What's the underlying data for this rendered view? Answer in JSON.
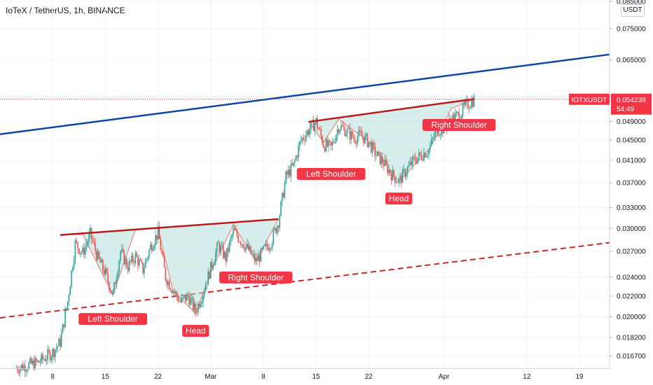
{
  "header": {
    "title": "IoTeX / TetherUS, 1h, BINANCE",
    "currency_button": "USDT"
  },
  "price_tag": {
    "symbol": "IOTXUSDT",
    "price": "0.054239",
    "countdown": "54:49",
    "color": "#f23645"
  },
  "colors": {
    "up": "#26a69a",
    "down": "#ef5350",
    "neckline": "#b71c1c",
    "upper_channel": "#0d47a1",
    "lower_channel": "#c62828",
    "pattern_fill": "#b2dfdb",
    "label_bg": "#f23645"
  },
  "chart_data": {
    "type": "line",
    "y_scale": "log",
    "ylim": [
      0.0158,
      0.0855
    ],
    "xlim": [
      "2021-02-01",
      "2021-04-23"
    ],
    "y_ticks": [
      "0.016700",
      "0.018200",
      "0.020000",
      "0.022000",
      "0.024000",
      "0.027000",
      "0.030000",
      "0.033000",
      "0.037000",
      "0.041000",
      "0.045000",
      "0.049000",
      "0.055000",
      "0.065000",
      "0.075000",
      "0.085000"
    ],
    "x_ticks": [
      {
        "label": "8",
        "date": "2021-02-08"
      },
      {
        "label": "15",
        "date": "2021-02-15"
      },
      {
        "label": "22",
        "date": "2021-02-22"
      },
      {
        "label": "Mar",
        "date": "2021-03-01"
      },
      {
        "label": "8",
        "date": "2021-03-08"
      },
      {
        "label": "15",
        "date": "2021-03-15"
      },
      {
        "label": "22",
        "date": "2021-03-22"
      },
      {
        "label": "Apr",
        "date": "2021-04-01"
      },
      {
        "label": "12",
        "date": "2021-04-12"
      },
      {
        "label": "19",
        "date": "2021-04-19"
      }
    ],
    "series": [
      {
        "values_by_date": [
          [
            "2021-02-03",
            0.0158
          ],
          [
            "2021-02-06",
            0.0162
          ],
          [
            "2021-02-08",
            0.017
          ],
          [
            "2021-02-09",
            0.0178
          ],
          [
            "2021-02-10",
            0.0215
          ],
          [
            "2021-02-11",
            0.028
          ],
          [
            "2021-02-12",
            0.0268
          ],
          [
            "2021-02-13",
            0.0292
          ],
          [
            "2021-02-14",
            0.0262
          ],
          [
            "2021-02-15",
            0.0244
          ],
          [
            "2021-02-16",
            0.0221
          ],
          [
            "2021-02-17",
            0.027
          ],
          [
            "2021-02-18",
            0.0252
          ],
          [
            "2021-02-19",
            0.0264
          ],
          [
            "2021-02-20",
            0.0248
          ],
          [
            "2021-02-21",
            0.0276
          ],
          [
            "2021-02-22",
            0.0294
          ],
          [
            "2021-02-23",
            0.024
          ],
          [
            "2021-02-24",
            0.0226
          ],
          [
            "2021-02-25",
            0.0214
          ],
          [
            "2021-02-26",
            0.022
          ],
          [
            "2021-02-27",
            0.0205
          ],
          [
            "2021-02-28",
            0.0224
          ],
          [
            "2021-03-01",
            0.025
          ],
          [
            "2021-03-02",
            0.0278
          ],
          [
            "2021-03-03",
            0.0262
          ],
          [
            "2021-03-04",
            0.0296
          ],
          [
            "2021-03-05",
            0.0284
          ],
          [
            "2021-03-06",
            0.0272
          ],
          [
            "2021-03-07",
            0.0258
          ],
          [
            "2021-03-08",
            0.027
          ],
          [
            "2021-03-09",
            0.0282
          ],
          [
            "2021-03-10",
            0.031
          ],
          [
            "2021-03-11",
            0.038
          ],
          [
            "2021-03-12",
            0.04
          ],
          [
            "2021-03-13",
            0.045
          ],
          [
            "2021-03-14",
            0.047
          ],
          [
            "2021-03-15",
            0.049
          ],
          [
            "2021-03-16",
            0.0441
          ],
          [
            "2021-03-17",
            0.0434
          ],
          [
            "2021-03-18",
            0.048
          ],
          [
            "2021-03-19",
            0.047
          ],
          [
            "2021-03-20",
            0.0454
          ],
          [
            "2021-03-21",
            0.046
          ],
          [
            "2021-03-22",
            0.0445
          ],
          [
            "2021-03-23",
            0.042
          ],
          [
            "2021-03-24",
            0.0405
          ],
          [
            "2021-03-25",
            0.0385
          ],
          [
            "2021-03-26",
            0.0372
          ],
          [
            "2021-03-27",
            0.0392
          ],
          [
            "2021-03-28",
            0.041
          ],
          [
            "2021-03-29",
            0.042
          ],
          [
            "2021-03-30",
            0.0431
          ],
          [
            "2021-03-31",
            0.047
          ],
          [
            "2021-04-01",
            0.0475
          ],
          [
            "2021-04-02",
            0.0495
          ],
          [
            "2021-04-03",
            0.0506
          ],
          [
            "2021-04-04",
            0.0528
          ],
          [
            "2021-04-05",
            0.0542
          ]
        ]
      }
    ],
    "upper_channel": [
      [
        "2021-02-01",
        0.0462
      ],
      [
        "2021-04-23",
        0.0666
      ]
    ],
    "lower_channel": [
      [
        "2021-02-01",
        0.0199
      ],
      [
        "2021-04-23",
        0.0281
      ]
    ],
    "necklines": [
      [
        [
          "2021-02-09",
          0.0291
        ],
        [
          "2021-03-10",
          0.0313
        ]
      ],
      [
        [
          "2021-03-14",
          0.0489
        ],
        [
          "2021-04-05",
          0.0543
        ]
      ]
    ],
    "patterns": [
      [
        [
          "2021-02-09",
          0.0291
        ],
        [
          "2021-02-12",
          0.0292
        ],
        [
          "2021-02-16",
          0.0221
        ],
        [
          "2021-02-19",
          0.0298
        ],
        [
          "2021-02-22",
          0.03
        ],
        [
          "2021-02-24",
          0.0225
        ],
        [
          "2021-02-27",
          0.0203
        ],
        [
          "2021-03-01",
          0.0245
        ],
        [
          "2021-03-04",
          0.0305
        ],
        [
          "2021-03-07",
          0.0258
        ],
        [
          "2021-03-10",
          0.0313
        ]
      ],
      [
        [
          "2021-03-14",
          0.0489
        ],
        [
          "2021-03-16",
          0.0445
        ],
        [
          "2021-03-18",
          0.0495
        ],
        [
          "2021-03-22",
          0.0447
        ],
        [
          "2021-03-26",
          0.0372
        ],
        [
          "2021-03-30",
          0.043
        ],
        [
          "2021-04-02",
          0.052
        ],
        [
          "2021-04-05",
          0.0543
        ]
      ]
    ],
    "annotations": [
      {
        "text": "Left Shoulder",
        "date": "2021-02-16",
        "price": 0.0198
      },
      {
        "text": "Head",
        "date": "2021-02-27",
        "price": 0.01875
      },
      {
        "text": "Right Shoulder",
        "date": "2021-03-07",
        "price": 0.02395
      },
      {
        "text": "Left Shoulder",
        "date": "2021-03-17",
        "price": 0.0385
      },
      {
        "text": "Head",
        "date": "2021-03-26",
        "price": 0.0344
      },
      {
        "text": "Right Shoulder",
        "date": "2021-04-03",
        "price": 0.0482
      }
    ]
  }
}
